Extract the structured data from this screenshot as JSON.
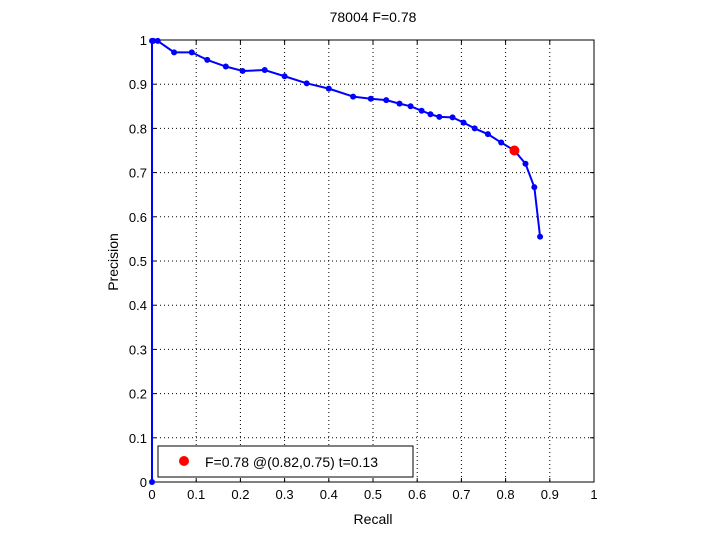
{
  "chart_data": {
    "type": "line",
    "title": "78004 F=0.78",
    "xlabel": "Recall",
    "ylabel": "Precision",
    "xlim": [
      0,
      1
    ],
    "ylim": [
      0,
      1
    ],
    "xticks": [
      0,
      0.1,
      0.2,
      0.3,
      0.4,
      0.5,
      0.6,
      0.7,
      0.8,
      0.9,
      1
    ],
    "yticks": [
      0,
      0.1,
      0.2,
      0.3,
      0.4,
      0.5,
      0.6,
      0.7,
      0.8,
      0.9,
      1
    ],
    "grid": true,
    "legend_position": "bottom-left",
    "series": [
      {
        "color": "#0000ff",
        "x": [
          0,
          0,
          0.003,
          0.013,
          0.05,
          0.09,
          0.125,
          0.167,
          0.205,
          0.255,
          0.3,
          0.35,
          0.4,
          0.455,
          0.495,
          0.53,
          0.56,
          0.585,
          0.61,
          0.63,
          0.65,
          0.68,
          0.705,
          0.73,
          0.76,
          0.79,
          0.82,
          0.845,
          0.865,
          0.878
        ],
        "y": [
          0,
          0.998,
          0.998,
          0.998,
          0.972,
          0.972,
          0.955,
          0.94,
          0.93,
          0.932,
          0.918,
          0.902,
          0.89,
          0.872,
          0.867,
          0.864,
          0.856,
          0.85,
          0.84,
          0.832,
          0.826,
          0.825,
          0.813,
          0.8,
          0.787,
          0.768,
          0.75,
          0.72,
          0.667,
          0.555
        ]
      }
    ],
    "highlight": {
      "x": 0.82,
      "y": 0.75,
      "color": "#ff0000"
    },
    "legend": {
      "label": "F=0.78 @(0.82,0.75) t=0.13",
      "color": "#ff0000"
    }
  }
}
